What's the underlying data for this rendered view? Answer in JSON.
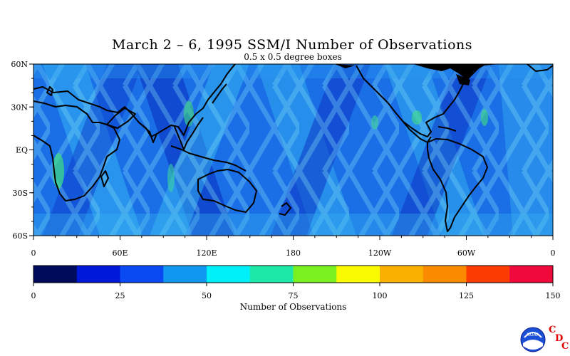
{
  "title": "March 2 – 6, 1995 SSM/I Number of Observations",
  "subtitle": "0.5 x 0.5 degree boxes",
  "map": {
    "lat_labels": [
      "60N",
      "30N",
      "EQ",
      "30S",
      "60S"
    ],
    "lon_labels": [
      "0",
      "60E",
      "120E",
      "180",
      "120W",
      "60W",
      "0"
    ],
    "colors": {
      "ocean_dark": "#0a2fd2",
      "ocean_mid": "#1e7bea",
      "ocean_light": "#39b8f0",
      "coast": "#000000",
      "ice": "#000000"
    }
  },
  "colorbar": {
    "title": "Number of Observations",
    "tick_labels": [
      "0",
      "25",
      "50",
      "75",
      "100",
      "125",
      "150"
    ],
    "colors": [
      "#000a5a",
      "#0018d8",
      "#0a4af2",
      "#1098f0",
      "#00f0fa",
      "#1ee8a8",
      "#7af020",
      "#fafa00",
      "#fab000",
      "#fa8a00",
      "#fa3c00",
      "#f00a3c"
    ]
  },
  "logo": {
    "name": "NOAA",
    "letters": [
      "C",
      "D",
      "C"
    ]
  }
}
